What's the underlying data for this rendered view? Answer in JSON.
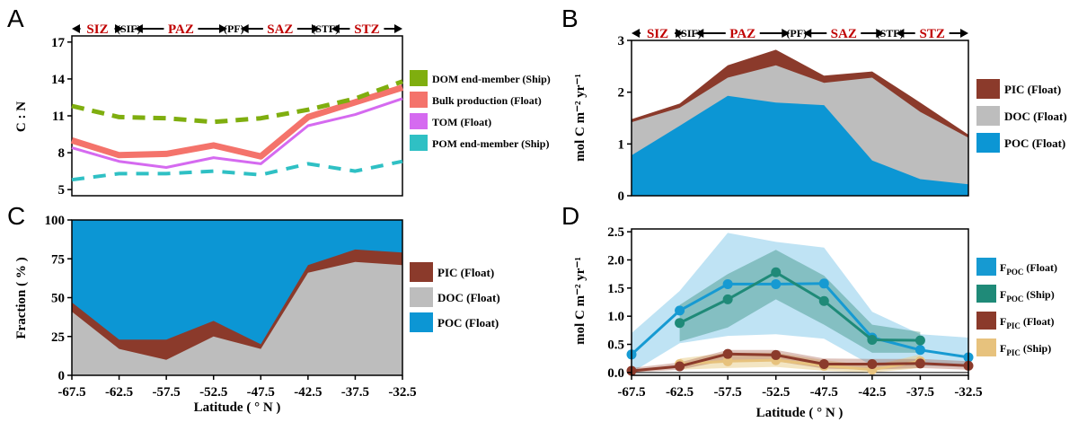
{
  "x_ticks": [
    "-67.5",
    "-62.5",
    "-57.5",
    "-52.5",
    "-47.5",
    "-42.5",
    "-37.5",
    "-32.5"
  ],
  "x_label": "Latitude ( ° N )",
  "zones": [
    "SIZ",
    "PAZ",
    "SAZ",
    "STZ"
  ],
  "fronts": [
    "(SIF)",
    "(PF)",
    "(STF)"
  ],
  "colors": {
    "dom": "#7fae0f",
    "bulk": "#f4736b",
    "tom": "#d56af0",
    "pom": "#2fc0c4",
    "pic": "#8b3a2b",
    "doc": "#bdbdbd",
    "poc": "#0c96d4",
    "fpoc_float": "#169ad2",
    "fpoc_ship": "#1f8a78",
    "fpic_float": "#8b3a2b",
    "fpic_ship": "#e7c27d"
  },
  "chart_data": [
    {
      "panel": "A",
      "type": "line",
      "ylabel": "C : N",
      "ylim": [
        4.5,
        17.5
      ],
      "yticks": [
        "5",
        "8",
        "11",
        "14",
        "17"
      ],
      "x": [
        -67.5,
        -62.5,
        -57.5,
        -52.5,
        -47.5,
        -42.5,
        -37.5,
        -32.5
      ],
      "series": [
        {
          "name": "DOM end-member (Ship)",
          "style": "dashed",
          "values": [
            11.8,
            10.9,
            10.8,
            10.5,
            10.8,
            11.5,
            12.4,
            13.8
          ]
        },
        {
          "name": "Bulk production (Float)",
          "style": "thick",
          "values": [
            9.0,
            7.8,
            7.9,
            8.6,
            7.7,
            10.9,
            12.1,
            13.3
          ]
        },
        {
          "name": "TOM (Float)",
          "style": "solid",
          "values": [
            8.4,
            7.3,
            6.8,
            7.6,
            7.1,
            10.2,
            11.1,
            12.4
          ]
        },
        {
          "name": "POM end-member (Ship)",
          "style": "dashed",
          "values": [
            5.8,
            6.3,
            6.3,
            6.5,
            6.2,
            7.1,
            6.5,
            7.3
          ]
        }
      ]
    },
    {
      "panel": "B",
      "type": "area",
      "ylabel": "mol C m⁻² yr⁻¹",
      "ylim": [
        0,
        3
      ],
      "yticks": [
        "0",
        "1",
        "2",
        "3"
      ],
      "x": [
        -67.5,
        -62.5,
        -57.5,
        -52.5,
        -47.5,
        -42.5,
        -37.5,
        -32.5
      ],
      "legend": [
        "PIC (Float)",
        "DOC (Float)",
        "POC (Float)"
      ],
      "stack_tops": {
        "POC (Float)": [
          0.78,
          1.35,
          1.93,
          1.8,
          1.75,
          0.68,
          0.32,
          0.22
        ],
        "DOC (Float)": [
          1.42,
          1.7,
          2.28,
          2.52,
          2.18,
          2.28,
          1.62,
          1.12
        ],
        "PIC (Float)": [
          1.48,
          1.78,
          2.52,
          2.82,
          2.32,
          2.4,
          1.8,
          1.18
        ]
      }
    },
    {
      "panel": "C",
      "type": "area",
      "ylabel": "Fraction ( % )",
      "ylim": [
        0,
        100
      ],
      "yticks": [
        "0",
        "25",
        "50",
        "75",
        "100"
      ],
      "x": [
        -67.5,
        -62.5,
        -57.5,
        -52.5,
        -47.5,
        -42.5,
        -37.5,
        -32.5
      ],
      "legend": [
        "PIC (Float)",
        "DOC (Float)",
        "POC (Float)"
      ],
      "stack_tops": {
        "DOC (Float)": [
          41,
          17,
          10,
          25,
          17,
          66,
          73,
          71
        ],
        "PIC (Float)": [
          47,
          23,
          23,
          35,
          20,
          71,
          81,
          79
        ],
        "POC (Float)": [
          100,
          100,
          100,
          100,
          100,
          100,
          100,
          100
        ]
      }
    },
    {
      "panel": "D",
      "type": "line",
      "ylabel": "mol C m⁻² yr⁻¹",
      "ylim": [
        -0.05,
        2.55
      ],
      "yticks": [
        "0.0",
        "0.5",
        "1.0",
        "1.5",
        "2.0",
        "2.5"
      ],
      "legend": [
        "FPOC (Float)",
        "FPOC (Ship)",
        "FPIC (Float)",
        "FPIC (Ship)"
      ],
      "series": [
        {
          "name": "FPOC (Float)",
          "x": [
            -67.5,
            -62.5,
            -57.5,
            -52.5,
            -47.5,
            -42.5,
            -37.5,
            -32.5
          ],
          "values": [
            0.32,
            1.1,
            1.57,
            1.57,
            1.58,
            0.62,
            0.4,
            0.27
          ],
          "band_low": [
            0.0,
            0.52,
            0.65,
            0.68,
            0.6,
            0.12,
            0.12,
            0.1
          ],
          "band_high": [
            0.7,
            1.45,
            2.48,
            2.32,
            2.22,
            1.08,
            0.68,
            0.62
          ]
        },
        {
          "name": "FPOC (Ship)",
          "x": [
            -62.5,
            -57.5,
            -52.5,
            -47.5,
            -42.5,
            -37.5
          ],
          "values": [
            0.88,
            1.3,
            1.78,
            1.27,
            0.58,
            0.57
          ],
          "band_low": [
            0.55,
            0.8,
            1.3,
            0.85,
            0.35,
            0.35
          ],
          "band_high": [
            1.2,
            1.75,
            2.18,
            1.72,
            0.85,
            0.72
          ]
        },
        {
          "name": "FPIC (Float)",
          "x": [
            -67.5,
            -62.5,
            -57.5,
            -52.5,
            -47.5,
            -42.5,
            -37.5,
            -32.5
          ],
          "values": [
            0.03,
            0.11,
            0.33,
            0.31,
            0.15,
            0.15,
            0.16,
            0.12
          ],
          "band_low": [
            0.0,
            0.05,
            0.22,
            0.2,
            0.07,
            0.05,
            0.08,
            0.05
          ],
          "band_high": [
            0.08,
            0.18,
            0.4,
            0.4,
            0.25,
            0.24,
            0.24,
            0.2
          ]
        },
        {
          "name": "FPIC (Ship)",
          "x": [
            -62.5,
            -57.5,
            -52.5,
            -47.5,
            -42.5,
            -37.5
          ],
          "values": [
            0.15,
            0.2,
            0.22,
            0.12,
            0.05,
            0.2
          ],
          "band_low": [
            0.05,
            0.08,
            0.1,
            0.03,
            0.0,
            0.08
          ],
          "band_high": [
            0.25,
            0.35,
            0.35,
            0.22,
            0.12,
            0.32
          ]
        }
      ]
    }
  ],
  "panel_labels": [
    "A",
    "B",
    "C",
    "D"
  ],
  "legend_a": [
    "DOM end-member (Ship)",
    "Bulk production (Float)",
    "TOM (Float)",
    "POM end-member (Ship)"
  ],
  "legend_b": [
    "PIC (Float)",
    "DOC (Float)",
    "POC (Float)"
  ],
  "legend_c": [
    "PIC (Float)",
    "DOC (Float)",
    "POC (Float)"
  ],
  "legend_d": [
    {
      "base": "F",
      "sub": "POC",
      "rest": " (Float)"
    },
    {
      "base": "F",
      "sub": "POC",
      "rest": " (Ship)"
    },
    {
      "base": "F",
      "sub": "PIC",
      "rest": " (Float)"
    },
    {
      "base": "F",
      "sub": "PIC",
      "rest": " (Ship)"
    }
  ]
}
